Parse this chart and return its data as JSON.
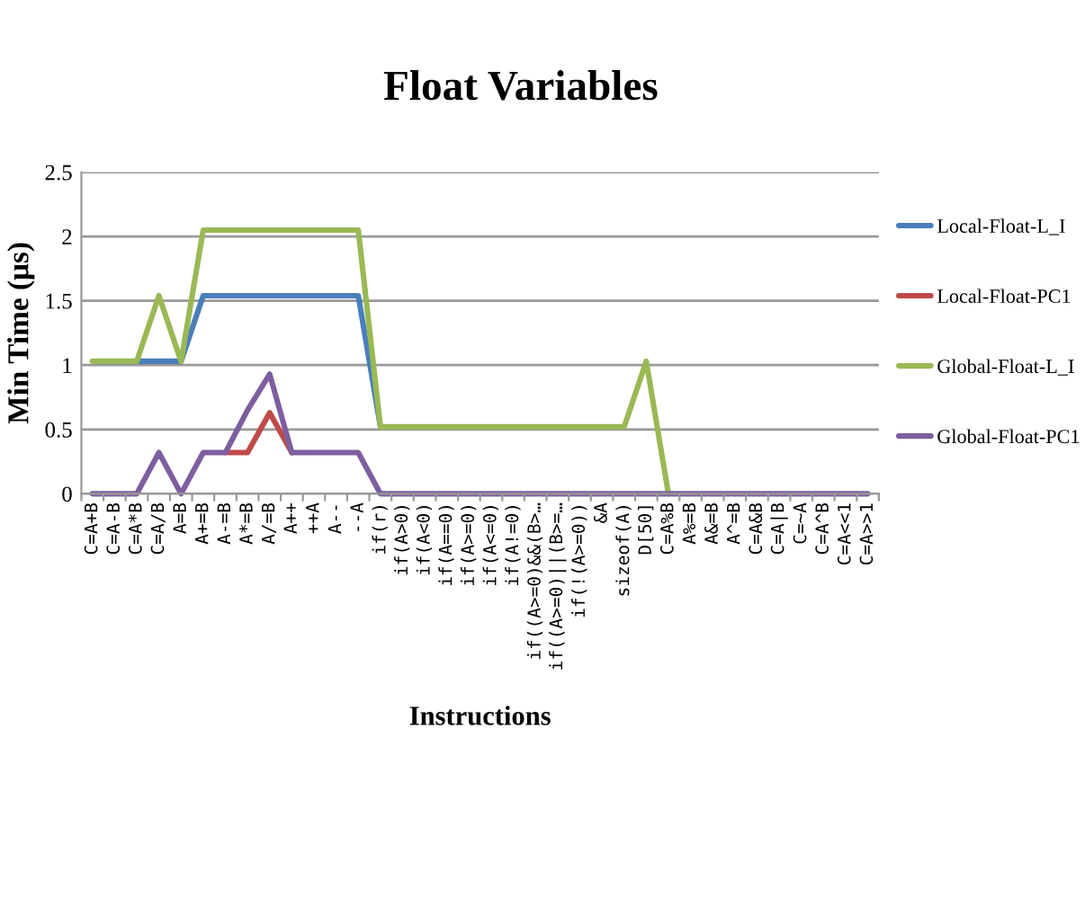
{
  "chart_data": {
    "type": "line",
    "title": "Float Variables",
    "xlabel": "Instructions",
    "ylabel": "Min Time (μs)",
    "categories": [
      "C=A+B",
      "C=A-B",
      "C=A*B",
      "C=A/B",
      "A=B",
      "A+=B",
      "A-=B",
      "A*=B",
      "A/=B",
      "A++",
      "++A",
      "A--",
      "--A",
      "if(r)",
      "if(A>0)",
      "if(A<0)",
      "if(A==0)",
      "if(A>=0)",
      "if(A<=0)",
      "if(A!=0)",
      "if((A>=0)&&(B>…",
      "if((A>=0)||(B>=…",
      "if(!(A>=0))",
      "&A",
      "sizeof(A)",
      "D[50]",
      "C=A%B",
      "A%=B",
      "A&=B",
      "A^=B",
      "C=A&B",
      "C=A|B",
      "C=~A",
      "C=A^B",
      "C=A<<1",
      "C=A>>1"
    ],
    "series": [
      {
        "name": "Local-Float-L_I",
        "color": "#4a7ebb",
        "values": [
          null,
          null,
          1.03,
          1.03,
          1.03,
          1.54,
          1.54,
          1.54,
          1.54,
          1.54,
          1.54,
          1.54,
          1.54,
          0.52,
          null,
          null,
          null,
          null,
          null,
          null,
          null,
          null,
          null,
          null,
          null,
          null,
          null,
          null,
          null,
          null,
          null,
          null,
          null,
          null,
          null,
          null
        ]
      },
      {
        "name": "Local-Float-PC1",
        "color": "#be4b48",
        "values": [
          null,
          null,
          null,
          null,
          null,
          null,
          0.32,
          0.32,
          0.63,
          0.32,
          null,
          null,
          null,
          null,
          null,
          null,
          null,
          null,
          null,
          null,
          null,
          null,
          null,
          null,
          null,
          null,
          null,
          null,
          null,
          null,
          null,
          null,
          null,
          null,
          null,
          null
        ]
      },
      {
        "name": "Global-Float-L_I",
        "color": "#98b954",
        "values": [
          1.03,
          1.03,
          1.03,
          1.54,
          1.03,
          2.05,
          2.05,
          2.05,
          2.05,
          2.05,
          2.05,
          2.05,
          2.05,
          0.52,
          0.52,
          0.52,
          0.52,
          0.52,
          0.52,
          0.52,
          0.52,
          0.52,
          0.52,
          0.52,
          0.52,
          1.03,
          0,
          null,
          null,
          null,
          null,
          null,
          null,
          null,
          null,
          null
        ]
      },
      {
        "name": "Global-Float-PC1",
        "color": "#7d5fa0",
        "values": [
          0,
          0,
          0,
          0.32,
          0,
          0.32,
          0.32,
          0.65,
          0.93,
          0.32,
          0.32,
          0.32,
          0.32,
          0,
          0,
          0,
          0,
          0,
          0,
          0,
          0,
          0,
          0,
          0,
          0,
          0,
          0,
          0,
          0,
          0,
          0,
          0,
          0,
          0,
          0,
          0
        ]
      }
    ],
    "ylim": [
      0,
      2.5
    ],
    "yticks": [
      0,
      0.5,
      1,
      1.5,
      2,
      2.5
    ],
    "grid": "y",
    "legend": "right",
    "marker": "none",
    "line_style": "solid"
  }
}
